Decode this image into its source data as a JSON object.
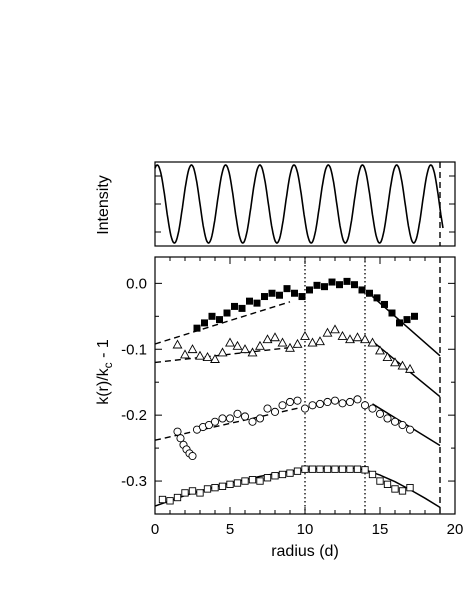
{
  "chart_data": [
    {
      "panel": "top",
      "type": "line",
      "ylabel": "Intensity",
      "xlim": [
        0,
        20
      ],
      "cycles_visible": 8,
      "wave_period_d": 2.28,
      "cutoff_line_x": 19.0,
      "cutoff_line_style": "dashed",
      "grid": false
    },
    {
      "panel": "bottom",
      "type": "scatter",
      "xlabel": "radius (d)",
      "ylabel_main": "k(r)/k",
      "ylabel_sub": "c",
      "ylabel_tail": " - 1",
      "xlim": [
        0,
        20
      ],
      "ylim": [
        -0.35,
        0.04
      ],
      "x_ticks": [
        0,
        5,
        10,
        15,
        20
      ],
      "x_tick_labels": [
        "0",
        "5",
        "10",
        "15",
        "20"
      ],
      "y_ticks": [
        0.0,
        -0.1,
        -0.2,
        -0.3
      ],
      "y_tick_labels": [
        "0.0",
        "-0.1",
        "-0.2",
        "-0.3"
      ],
      "grid": false,
      "vertical_lines": [
        {
          "x": 10.0,
          "style": "dotted"
        },
        {
          "x": 14.0,
          "style": "dotted"
        },
        {
          "x": 19.0,
          "style": "dashed"
        }
      ],
      "series": [
        {
          "marker": "filled-square",
          "x": [
            2.8,
            3.3,
            3.8,
            4.3,
            4.8,
            5.3,
            5.8,
            6.3,
            6.8,
            7.3,
            7.8,
            8.3,
            8.8,
            9.3,
            9.8,
            10.3,
            10.8,
            11.3,
            11.8,
            12.3,
            12.8,
            13.3,
            13.8,
            14.3,
            14.8,
            15.3,
            15.8,
            16.3,
            16.8,
            17.3
          ],
          "y": [
            -0.068,
            -0.06,
            -0.05,
            -0.055,
            -0.045,
            -0.035,
            -0.038,
            -0.027,
            -0.03,
            -0.02,
            -0.015,
            -0.018,
            -0.008,
            -0.015,
            -0.02,
            -0.01,
            -0.003,
            -0.005,
            0.002,
            -0.002,
            0.003,
            -0.002,
            -0.01,
            -0.015,
            -0.022,
            -0.032,
            -0.045,
            -0.06,
            -0.055,
            -0.05
          ],
          "fit_dashed_x": [
            0,
            9.0
          ],
          "fit_dashed_y": [
            -0.092,
            -0.028
          ],
          "fit_solid_x": [
            14.5,
            19
          ],
          "fit_solid_y": [
            -0.02,
            -0.11
          ]
        },
        {
          "marker": "open-triangle",
          "x": [
            1.5,
            2.0,
            2.5,
            3.0,
            3.5,
            4.0,
            4.5,
            5.0,
            5.5,
            6.0,
            6.5,
            7.0,
            7.5,
            8.0,
            8.5,
            9.0,
            9.5,
            10.0,
            10.5,
            11.0,
            11.5,
            12.0,
            12.5,
            13.0,
            13.5,
            14.0,
            14.5,
            15.0,
            15.5,
            16.0,
            16.5,
            17.0
          ],
          "y": [
            -0.093,
            -0.108,
            -0.1,
            -0.11,
            -0.112,
            -0.115,
            -0.105,
            -0.09,
            -0.095,
            -0.1,
            -0.105,
            -0.095,
            -0.085,
            -0.082,
            -0.09,
            -0.098,
            -0.092,
            -0.08,
            -0.09,
            -0.088,
            -0.075,
            -0.07,
            -0.08,
            -0.085,
            -0.082,
            -0.085,
            -0.09,
            -0.102,
            -0.112,
            -0.12,
            -0.125,
            -0.13
          ],
          "fit_dashed_x": [
            0,
            10
          ],
          "fit_dashed_y": [
            -0.12,
            -0.095
          ],
          "fit_solid_x": [
            14.5,
            19
          ],
          "fit_solid_y": [
            -0.088,
            -0.172
          ]
        },
        {
          "marker": "open-circle",
          "x": [
            1.5,
            1.7,
            1.9,
            2.1,
            2.3,
            2.5,
            2.8,
            3.2,
            3.6,
            4.0,
            4.5,
            5.0,
            5.5,
            6.0,
            6.5,
            7.0,
            7.5,
            8.0,
            8.5,
            9.0,
            9.5,
            10.0,
            10.5,
            11.0,
            11.5,
            12.0,
            12.5,
            13.0,
            13.5,
            14.0,
            14.5,
            15.0,
            15.5,
            16.0,
            16.5,
            17.0
          ],
          "y": [
            -0.225,
            -0.235,
            -0.245,
            -0.252,
            -0.258,
            -0.262,
            -0.222,
            -0.218,
            -0.215,
            -0.21,
            -0.205,
            -0.205,
            -0.198,
            -0.202,
            -0.21,
            -0.205,
            -0.19,
            -0.195,
            -0.185,
            -0.18,
            -0.178,
            -0.19,
            -0.185,
            -0.183,
            -0.18,
            -0.178,
            -0.182,
            -0.18,
            -0.176,
            -0.185,
            -0.19,
            -0.198,
            -0.205,
            -0.21,
            -0.215,
            -0.222
          ],
          "fit_dashed_x": [
            0,
            9.8
          ],
          "fit_dashed_y": [
            -0.238,
            -0.188
          ],
          "fit_solid_x": [
            14.5,
            19
          ],
          "fit_solid_y": [
            -0.183,
            -0.246
          ]
        },
        {
          "marker": "open-square",
          "x": [
            0.5,
            1.0,
            1.5,
            2.0,
            2.5,
            3.0,
            3.5,
            4.0,
            4.5,
            5.0,
            5.5,
            6.0,
            6.5,
            7.0,
            7.5,
            8.0,
            8.5,
            9.0,
            9.5,
            10.0,
            10.5,
            11.0,
            11.5,
            12.0,
            12.5,
            13.0,
            13.5,
            14.0,
            14.5,
            15.0,
            15.5,
            16.0,
            16.5,
            17.0
          ],
          "y": [
            -0.328,
            -0.33,
            -0.325,
            -0.318,
            -0.315,
            -0.318,
            -0.312,
            -0.31,
            -0.308,
            -0.305,
            -0.303,
            -0.3,
            -0.298,
            -0.3,
            -0.295,
            -0.292,
            -0.29,
            -0.288,
            -0.285,
            -0.282,
            -0.282,
            -0.282,
            -0.282,
            -0.282,
            -0.282,
            -0.282,
            -0.282,
            -0.283,
            -0.29,
            -0.3,
            -0.305,
            -0.312,
            -0.315,
            -0.31
          ],
          "fit_curve_x": [
            0,
            1,
            2,
            3,
            4,
            5,
            6,
            7,
            8,
            9,
            10,
            11,
            12,
            13,
            14,
            15,
            16,
            17,
            18,
            19
          ],
          "fit_curve_y": [
            -0.338,
            -0.33,
            -0.322,
            -0.315,
            -0.309,
            -0.303,
            -0.298,
            -0.293,
            -0.289,
            -0.285,
            -0.283,
            -0.281,
            -0.28,
            -0.28,
            -0.283,
            -0.291,
            -0.301,
            -0.313,
            -0.326,
            -0.34
          ]
        }
      ]
    }
  ]
}
